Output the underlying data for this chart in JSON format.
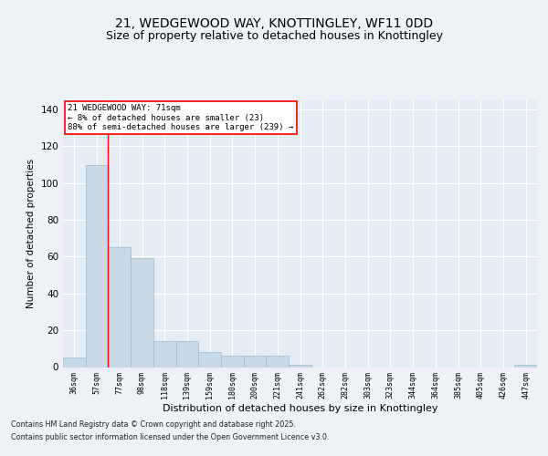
{
  "title_line1": "21, WEDGEWOOD WAY, KNOTTINGLEY, WF11 0DD",
  "title_line2": "Size of property relative to detached houses in Knottingley",
  "xlabel": "Distribution of detached houses by size in Knottingley",
  "ylabel": "Number of detached properties",
  "footer_line1": "Contains HM Land Registry data © Crown copyright and database right 2025.",
  "footer_line2": "Contains public sector information licensed under the Open Government Licence v3.0.",
  "bins": [
    "36sqm",
    "57sqm",
    "77sqm",
    "98sqm",
    "118sqm",
    "139sqm",
    "159sqm",
    "180sqm",
    "200sqm",
    "221sqm",
    "241sqm",
    "262sqm",
    "282sqm",
    "303sqm",
    "323sqm",
    "344sqm",
    "364sqm",
    "385sqm",
    "405sqm",
    "426sqm",
    "447sqm"
  ],
  "values": [
    5,
    110,
    65,
    59,
    14,
    14,
    8,
    6,
    6,
    6,
    1,
    0,
    0,
    0,
    0,
    0,
    0,
    0,
    0,
    0,
    1
  ],
  "bar_color": "#c8d9e8",
  "bar_edge_color": "#a0bbcc",
  "annotation_title": "21 WEDGEWOOD WAY: 71sqm",
  "annotation_line1": "← 8% of detached houses are smaller (23)",
  "annotation_line2": "88% of semi-detached houses are larger (239) →",
  "ylim": [
    0,
    145
  ],
  "yticks": [
    0,
    20,
    40,
    60,
    80,
    100,
    120,
    140
  ],
  "bg_color": "#eef2f7",
  "plot_bg_color": "#e4ecf4",
  "grid_color": "#ffffff",
  "title_fontsize": 10,
  "subtitle_fontsize": 9
}
